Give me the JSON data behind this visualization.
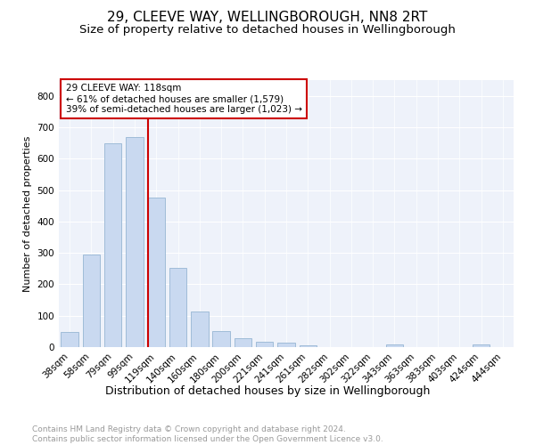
{
  "title1": "29, CLEEVE WAY, WELLINGBOROUGH, NN8 2RT",
  "title2": "Size of property relative to detached houses in Wellingborough",
  "xlabel": "Distribution of detached houses by size in Wellingborough",
  "ylabel": "Number of detached properties",
  "footer": "Contains HM Land Registry data © Crown copyright and database right 2024.\nContains public sector information licensed under the Open Government Licence v3.0.",
  "categories": [
    "38sqm",
    "58sqm",
    "79sqm",
    "99sqm",
    "119sqm",
    "140sqm",
    "160sqm",
    "180sqm",
    "200sqm",
    "221sqm",
    "241sqm",
    "261sqm",
    "282sqm",
    "302sqm",
    "322sqm",
    "343sqm",
    "363sqm",
    "383sqm",
    "403sqm",
    "424sqm",
    "444sqm"
  ],
  "values": [
    47,
    295,
    650,
    668,
    477,
    252,
    113,
    50,
    27,
    17,
    15,
    5,
    1,
    0,
    0,
    8,
    0,
    0,
    0,
    9,
    0
  ],
  "bar_color": "#c9d9f0",
  "bar_edge_color": "#a0bcd8",
  "marker_label": "29 CLEEVE WAY: 118sqm",
  "annotation_line1": "← 61% of detached houses are smaller (1,579)",
  "annotation_line2": "39% of semi-detached houses are larger (1,023) →",
  "vline_color": "#cc0000",
  "annotation_box_edge": "#cc0000",
  "ylim": [
    0,
    850
  ],
  "yticks": [
    0,
    100,
    200,
    300,
    400,
    500,
    600,
    700,
    800
  ],
  "title1_fontsize": 11,
  "title2_fontsize": 9.5,
  "xlabel_fontsize": 9,
  "ylabel_fontsize": 8,
  "tick_fontsize": 7.5,
  "annotation_fontsize": 7.5,
  "footer_fontsize": 6.5,
  "bg_color": "#eef2fa"
}
